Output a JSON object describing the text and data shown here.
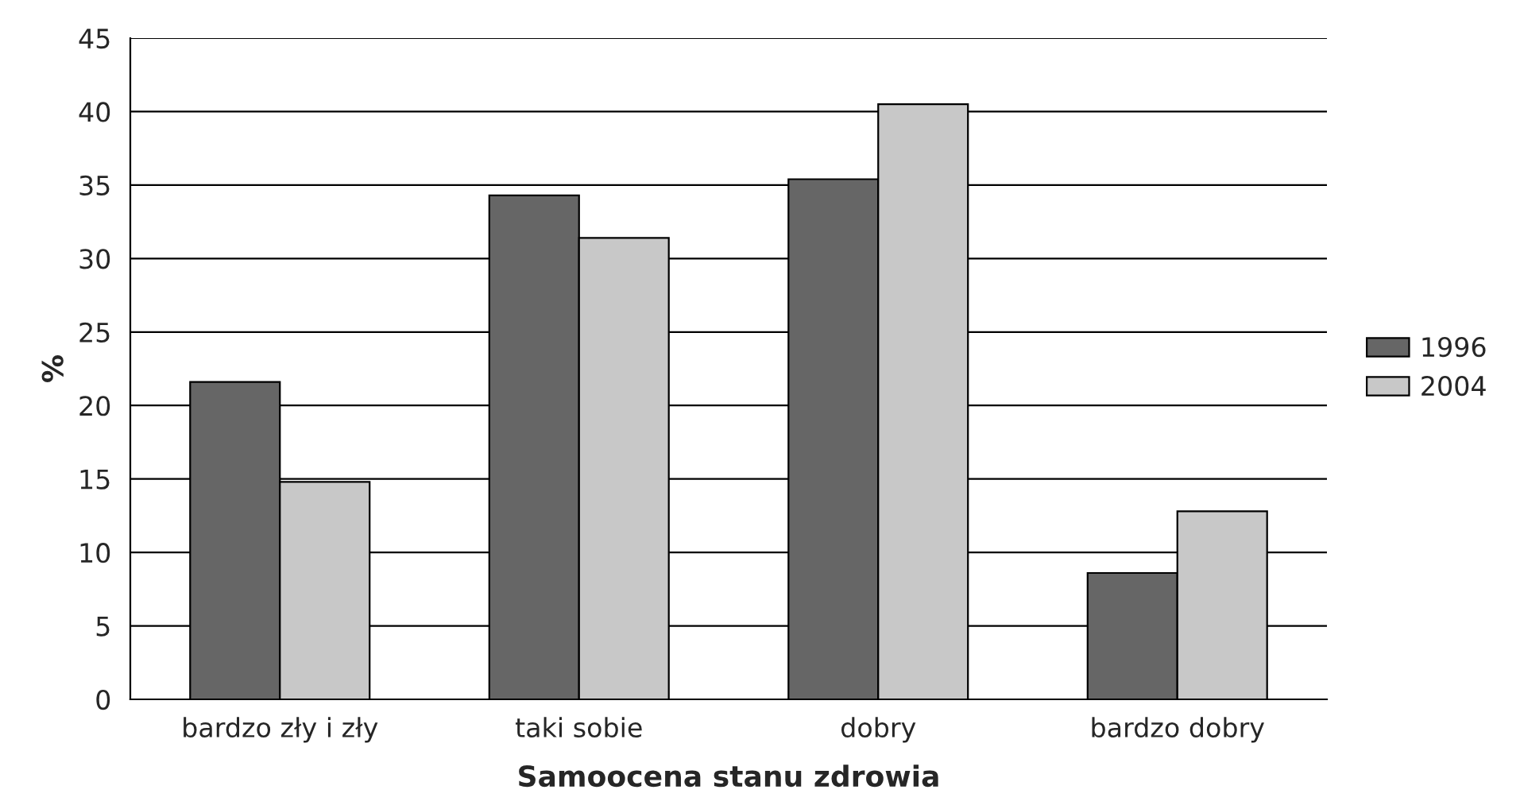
{
  "chart_data": {
    "type": "bar",
    "xlabel": "Samoocena stanu zdrowia",
    "ylabel": "%",
    "categories": [
      "bardzo zły i zły",
      "taki sobie",
      "dobry",
      "bardzo dobry"
    ],
    "series": [
      {
        "name": "1996",
        "color": "#666666",
        "values": [
          21.6,
          34.3,
          35.4,
          8.6
        ]
      },
      {
        "name": "2004",
        "color": "#c8c8c8",
        "values": [
          14.8,
          31.4,
          40.5,
          12.8
        ]
      }
    ],
    "ylim": [
      0,
      45
    ],
    "yticks": [
      0,
      5,
      10,
      15,
      20,
      25,
      30,
      35,
      40,
      45
    ],
    "grid": "y",
    "legend": "right"
  }
}
